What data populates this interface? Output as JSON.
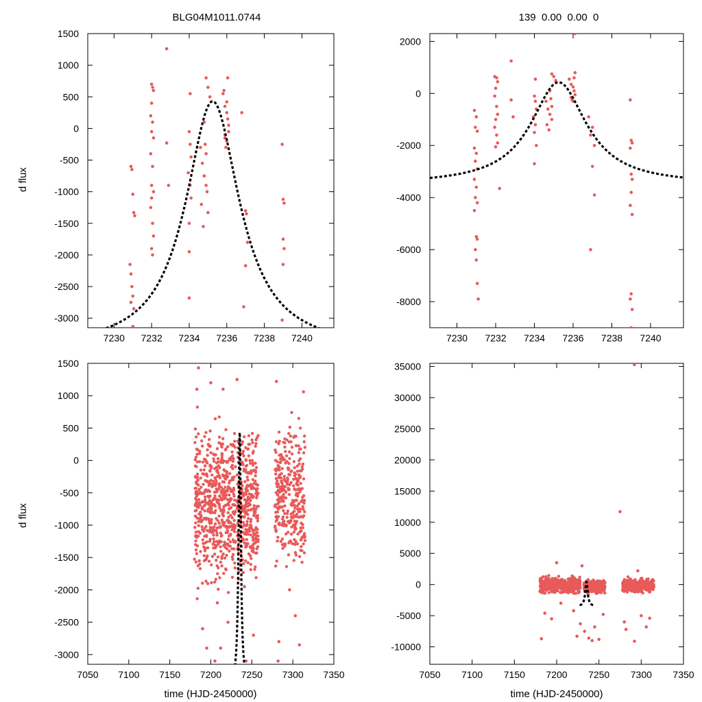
{
  "figure": {
    "left_title": "BLG04M1011.0744",
    "right_title": "139  0.00  0.00  0",
    "ylabel": "d flux",
    "xlabel": "time (HJD-2450000)"
  },
  "colors": {
    "points": "#e85a5a",
    "model": "#000000",
    "axes": "#000000"
  },
  "chart_data": [
    {
      "id": "top-left",
      "type": "scatter",
      "title": "BLG04M1011.0744",
      "xlabel": "",
      "ylabel": "d flux",
      "xlim": [
        7228.6,
        7241.7
      ],
      "ylim": [
        -3150,
        1500
      ],
      "xticks": [
        7230,
        7232,
        7234,
        7236,
        7238,
        7240
      ],
      "yticks": [
        -3000,
        -2500,
        -2000,
        -1500,
        -1000,
        -500,
        0,
        500,
        1000,
        1500
      ],
      "model": {
        "t0": 7235.25,
        "fmax": 430,
        "base": -3500,
        "half": 1.75
      },
      "series": [
        {
          "name": "data",
          "points": [
            [
              7230.9,
              -600
            ],
            [
              7230.95,
              -650
            ],
            [
              7231.0,
              -1040
            ],
            [
              7231.05,
              -1330
            ],
            [
              7231.1,
              -1380
            ],
            [
              7230.85,
              -2150
            ],
            [
              7230.9,
              -2300
            ],
            [
              7230.95,
              -2500
            ],
            [
              7231.0,
              -2650
            ],
            [
              7230.9,
              -2750
            ],
            [
              7231.05,
              -2850
            ],
            [
              7231.0,
              -3130
            ],
            [
              7232.0,
              700
            ],
            [
              7232.05,
              650
            ],
            [
              7232.1,
              600
            ],
            [
              7232.0,
              400
            ],
            [
              7231.95,
              200
            ],
            [
              7232.05,
              100
            ],
            [
              7232.0,
              -50
            ],
            [
              7232.1,
              -150
            ],
            [
              7231.95,
              -400
            ],
            [
              7232.05,
              -600
            ],
            [
              7232.0,
              -900
            ],
            [
              7232.1,
              -1000
            ],
            [
              7232.0,
              -1100
            ],
            [
              7231.95,
              -1250
            ],
            [
              7232.05,
              -1500
            ],
            [
              7232.1,
              -1700
            ],
            [
              7232.0,
              -1900
            ],
            [
              7232.05,
              -2000
            ],
            [
              7232.8,
              1260
            ],
            [
              7232.8,
              -230
            ],
            [
              7232.9,
              -900
            ],
            [
              7234.0,
              -50
            ],
            [
              7234.05,
              -250
            ],
            [
              7234.1,
              -450
            ],
            [
              7233.95,
              -700
            ],
            [
              7234.05,
              -900
            ],
            [
              7234.1,
              -1100
            ],
            [
              7234.0,
              -1500
            ],
            [
              7234.05,
              550
            ],
            [
              7234.0,
              -1950
            ],
            [
              7234.0,
              -2680
            ],
            [
              7234.6,
              -300
            ],
            [
              7234.7,
              -550
            ],
            [
              7234.8,
              100
            ],
            [
              7234.9,
              -400
            ],
            [
              7234.65,
              -1200
            ],
            [
              7234.75,
              -1550
            ],
            [
              7234.8,
              -750
            ],
            [
              7234.9,
              -900
            ],
            [
              7235.0,
              650
            ],
            [
              7234.9,
              800
            ],
            [
              7235.1,
              500
            ],
            [
              7234.85,
              -250
            ],
            [
              7234.95,
              -1000
            ],
            [
              7235.0,
              -1330
            ],
            [
              7235.8,
              550
            ],
            [
              7235.9,
              350
            ],
            [
              7236.0,
              250
            ],
            [
              7236.05,
              150
            ],
            [
              7236.1,
              50
            ],
            [
              7235.9,
              -100
            ],
            [
              7236.0,
              -200
            ],
            [
              7236.1,
              -50
            ],
            [
              7235.95,
              -300
            ],
            [
              7236.05,
              800
            ],
            [
              7236.0,
              420
            ],
            [
              7235.85,
              600
            ],
            [
              7235.9,
              -150
            ],
            [
              7236.8,
              250
            ],
            [
              7237.0,
              -1300
            ],
            [
              7237.05,
              -1350
            ],
            [
              7237.1,
              -1800
            ],
            [
              7237.0,
              -2170
            ],
            [
              7236.9,
              -2820
            ],
            [
              7238.95,
              -250
            ],
            [
              7239.0,
              -1120
            ],
            [
              7239.05,
              -1180
            ],
            [
              7239.0,
              -1750
            ],
            [
              7239.05,
              -1900
            ],
            [
              7239.0,
              -2150
            ],
            [
              7238.95,
              -3030
            ]
          ]
        }
      ]
    },
    {
      "id": "top-right",
      "type": "scatter",
      "title": "139  0.00  0.00  0",
      "xlabel": "",
      "ylabel": "",
      "xlim": [
        7228.6,
        7241.7
      ],
      "ylim": [
        -9000,
        2300
      ],
      "xticks": [
        7230,
        7232,
        7234,
        7236,
        7238,
        7240
      ],
      "yticks": [
        -8000,
        -6000,
        -4000,
        -2000,
        0,
        2000
      ],
      "model": {
        "t0": 7235.25,
        "fmax": 430,
        "base": -3500,
        "half": 1.75
      },
      "series": [
        {
          "name": "data",
          "points": [
            [
              7230.9,
              -650
            ],
            [
              7231.0,
              -900
            ],
            [
              7230.95,
              -1300
            ],
            [
              7231.05,
              -1450
            ],
            [
              7230.9,
              -2100
            ],
            [
              7231.0,
              -2300
            ],
            [
              7230.95,
              -2600
            ],
            [
              7231.05,
              -2900
            ],
            [
              7230.9,
              -3300
            ],
            [
              7231.0,
              -3600
            ],
            [
              7230.95,
              -4000
            ],
            [
              7231.05,
              -4200
            ],
            [
              7230.9,
              -4500
            ],
            [
              7231.0,
              -5500
            ],
            [
              7231.05,
              -5600
            ],
            [
              7230.95,
              -6000
            ],
            [
              7231.0,
              -6400
            ],
            [
              7231.05,
              -7300
            ],
            [
              7231.1,
              -7900
            ],
            [
              7231.95,
              650
            ],
            [
              7232.05,
              600
            ],
            [
              7232.1,
              450
            ],
            [
              7232.0,
              200
            ],
            [
              7231.95,
              -100
            ],
            [
              7232.05,
              -500
            ],
            [
              7232.1,
              -800
            ],
            [
              7232.0,
              -1000
            ],
            [
              7231.95,
              -1300
            ],
            [
              7232.05,
              -1600
            ],
            [
              7232.1,
              -1900
            ],
            [
              7232.0,
              -2050
            ],
            [
              7232.2,
              -3650
            ],
            [
              7232.8,
              1250
            ],
            [
              7232.8,
              -250
            ],
            [
              7232.9,
              -900
            ],
            [
              7234.0,
              -100
            ],
            [
              7234.05,
              -300
            ],
            [
              7234.1,
              -600
            ],
            [
              7233.95,
              -900
            ],
            [
              7234.05,
              -1200
            ],
            [
              7234.0,
              -1500
            ],
            [
              7234.1,
              -2000
            ],
            [
              7234.0,
              -2700
            ],
            [
              7234.05,
              550
            ],
            [
              7234.6,
              -300
            ],
            [
              7234.7,
              -600
            ],
            [
              7234.8,
              100
            ],
            [
              7234.9,
              -500
            ],
            [
              7234.65,
              -1200
            ],
            [
              7234.75,
              -1400
            ],
            [
              7234.8,
              -800
            ],
            [
              7234.9,
              -1000
            ],
            [
              7235.0,
              650
            ],
            [
              7234.9,
              750
            ],
            [
              7235.1,
              500
            ],
            [
              7234.85,
              -200
            ],
            [
              7235.8,
              550
            ],
            [
              7235.9,
              350
            ],
            [
              7236.0,
              250
            ],
            [
              7236.05,
              100
            ],
            [
              7236.1,
              -50
            ],
            [
              7235.9,
              -150
            ],
            [
              7236.0,
              -300
            ],
            [
              7236.1,
              800
            ],
            [
              7235.95,
              -250
            ],
            [
              7236.05,
              600
            ],
            [
              7236.1,
              2300
            ],
            [
              7236.8,
              -900
            ],
            [
              7237.0,
              -1300
            ],
            [
              7236.9,
              -1600
            ],
            [
              7237.1,
              -2000
            ],
            [
              7237.0,
              -2800
            ],
            [
              7237.1,
              -3900
            ],
            [
              7236.9,
              -6000
            ],
            [
              7238.95,
              -250
            ],
            [
              7239.0,
              -1800
            ],
            [
              7239.05,
              -1900
            ],
            [
              7238.95,
              -2100
            ],
            [
              7239.0,
              -3100
            ],
            [
              7239.05,
              -3300
            ],
            [
              7239.0,
              -3800
            ],
            [
              7238.95,
              -4300
            ],
            [
              7239.05,
              -4650
            ],
            [
              7239.0,
              -7700
            ],
            [
              7238.95,
              -7900
            ],
            [
              7239.05,
              -8300
            ],
            [
              7239.0,
              -9000
            ]
          ]
        }
      ]
    },
    {
      "id": "bottom-left",
      "type": "scatter",
      "title": "",
      "xlabel": "time (HJD-2450000)",
      "ylabel": "d flux",
      "xlim": [
        7050,
        7350
      ],
      "ylim": [
        -3150,
        1500
      ],
      "xticks": [
        7050,
        7100,
        7150,
        7200,
        7250,
        7300,
        7350
      ],
      "yticks": [
        -3000,
        -2500,
        -2000,
        -1500,
        -1000,
        -500,
        0,
        500,
        1000,
        1500
      ],
      "model": {
        "t0": 7235.25,
        "fmax": 430,
        "base": -3500,
        "half": 1.75
      },
      "density": [
        {
          "x": [
            7180,
            7230
          ],
          "y": [
            -2300,
            900
          ],
          "n": 560,
          "seed": 11
        },
        {
          "x": [
            7232,
            7258
          ],
          "y": [
            -2200,
            800
          ],
          "n": 320,
          "seed": 23
        },
        {
          "x": [
            7278,
            7315
          ],
          "y": [
            -2000,
            850
          ],
          "n": 340,
          "seed": 37
        }
      ],
      "series": [
        {
          "name": "data",
          "points": [
            [
              7185,
              1430
            ],
            [
              7200,
              1200
            ],
            [
              7215,
              1100
            ],
            [
              7232,
              1250
            ],
            [
              7280,
              1220
            ],
            [
              7313,
              1060
            ],
            [
              7183,
              1100
            ],
            [
              7190,
              -2600
            ],
            [
              7195,
              -2900
            ],
            [
              7205,
              -3100
            ],
            [
              7208,
              -2200
            ],
            [
              7212,
              -2900
            ],
            [
              7221,
              -2500
            ],
            [
              7243,
              -3100
            ],
            [
              7252,
              -2700
            ],
            [
              7282,
              -3100
            ],
            [
              7283,
              -2800
            ],
            [
              7303,
              -2400
            ],
            [
              7308,
              -2850
            ],
            [
              7241,
              -1950
            ],
            [
              7296,
              -2000
            ]
          ]
        }
      ]
    },
    {
      "id": "bottom-right",
      "type": "scatter",
      "title": "",
      "xlabel": "time (HJD-2450000)",
      "ylabel": "",
      "xlim": [
        7050,
        7350
      ],
      "ylim": [
        -12800,
        35500
      ],
      "xticks": [
        7050,
        7100,
        7150,
        7200,
        7250,
        7300,
        7350
      ],
      "yticks": [
        -10000,
        -5000,
        0,
        5000,
        10000,
        15000,
        20000,
        25000,
        30000,
        35000
      ],
      "model": {
        "t0": 7235.25,
        "fmax": 430,
        "base": -3500,
        "half": 1.75
      },
      "density": [
        {
          "x": [
            7180,
            7228
          ],
          "y": [
            -1800,
            1600
          ],
          "n": 420,
          "seed": 41
        },
        {
          "x": [
            7232,
            7257
          ],
          "y": [
            -1800,
            1200
          ],
          "n": 260,
          "seed": 53
        },
        {
          "x": [
            7278,
            7315
          ],
          "y": [
            -1600,
            1400
          ],
          "n": 320,
          "seed": 67
        }
      ],
      "series": [
        {
          "name": "data",
          "points": [
            [
              7292,
              35300
            ],
            [
              7275,
              11700
            ],
            [
              7182,
              -8700
            ],
            [
              7186,
              -4600
            ],
            [
              7194,
              -5500
            ],
            [
              7205,
              -3000
            ],
            [
              7220,
              -4200
            ],
            [
              7224,
              -8300
            ],
            [
              7228,
              -6300
            ],
            [
              7233,
              -7500
            ],
            [
              7238,
              -8600
            ],
            [
              7242,
              -9000
            ],
            [
              7245,
              -6800
            ],
            [
              7250,
              -8800
            ],
            [
              7255,
              -4800
            ],
            [
              7247,
              -12800
            ],
            [
              7280,
              -6000
            ],
            [
              7282,
              -7200
            ],
            [
              7292,
              -9100
            ],
            [
              7300,
              -5000
            ],
            [
              7306,
              -6800
            ],
            [
              7310,
              -5400
            ],
            [
              7200,
              3500
            ],
            [
              7230,
              3000
            ],
            [
              7296,
              2200
            ]
          ]
        }
      ]
    }
  ]
}
